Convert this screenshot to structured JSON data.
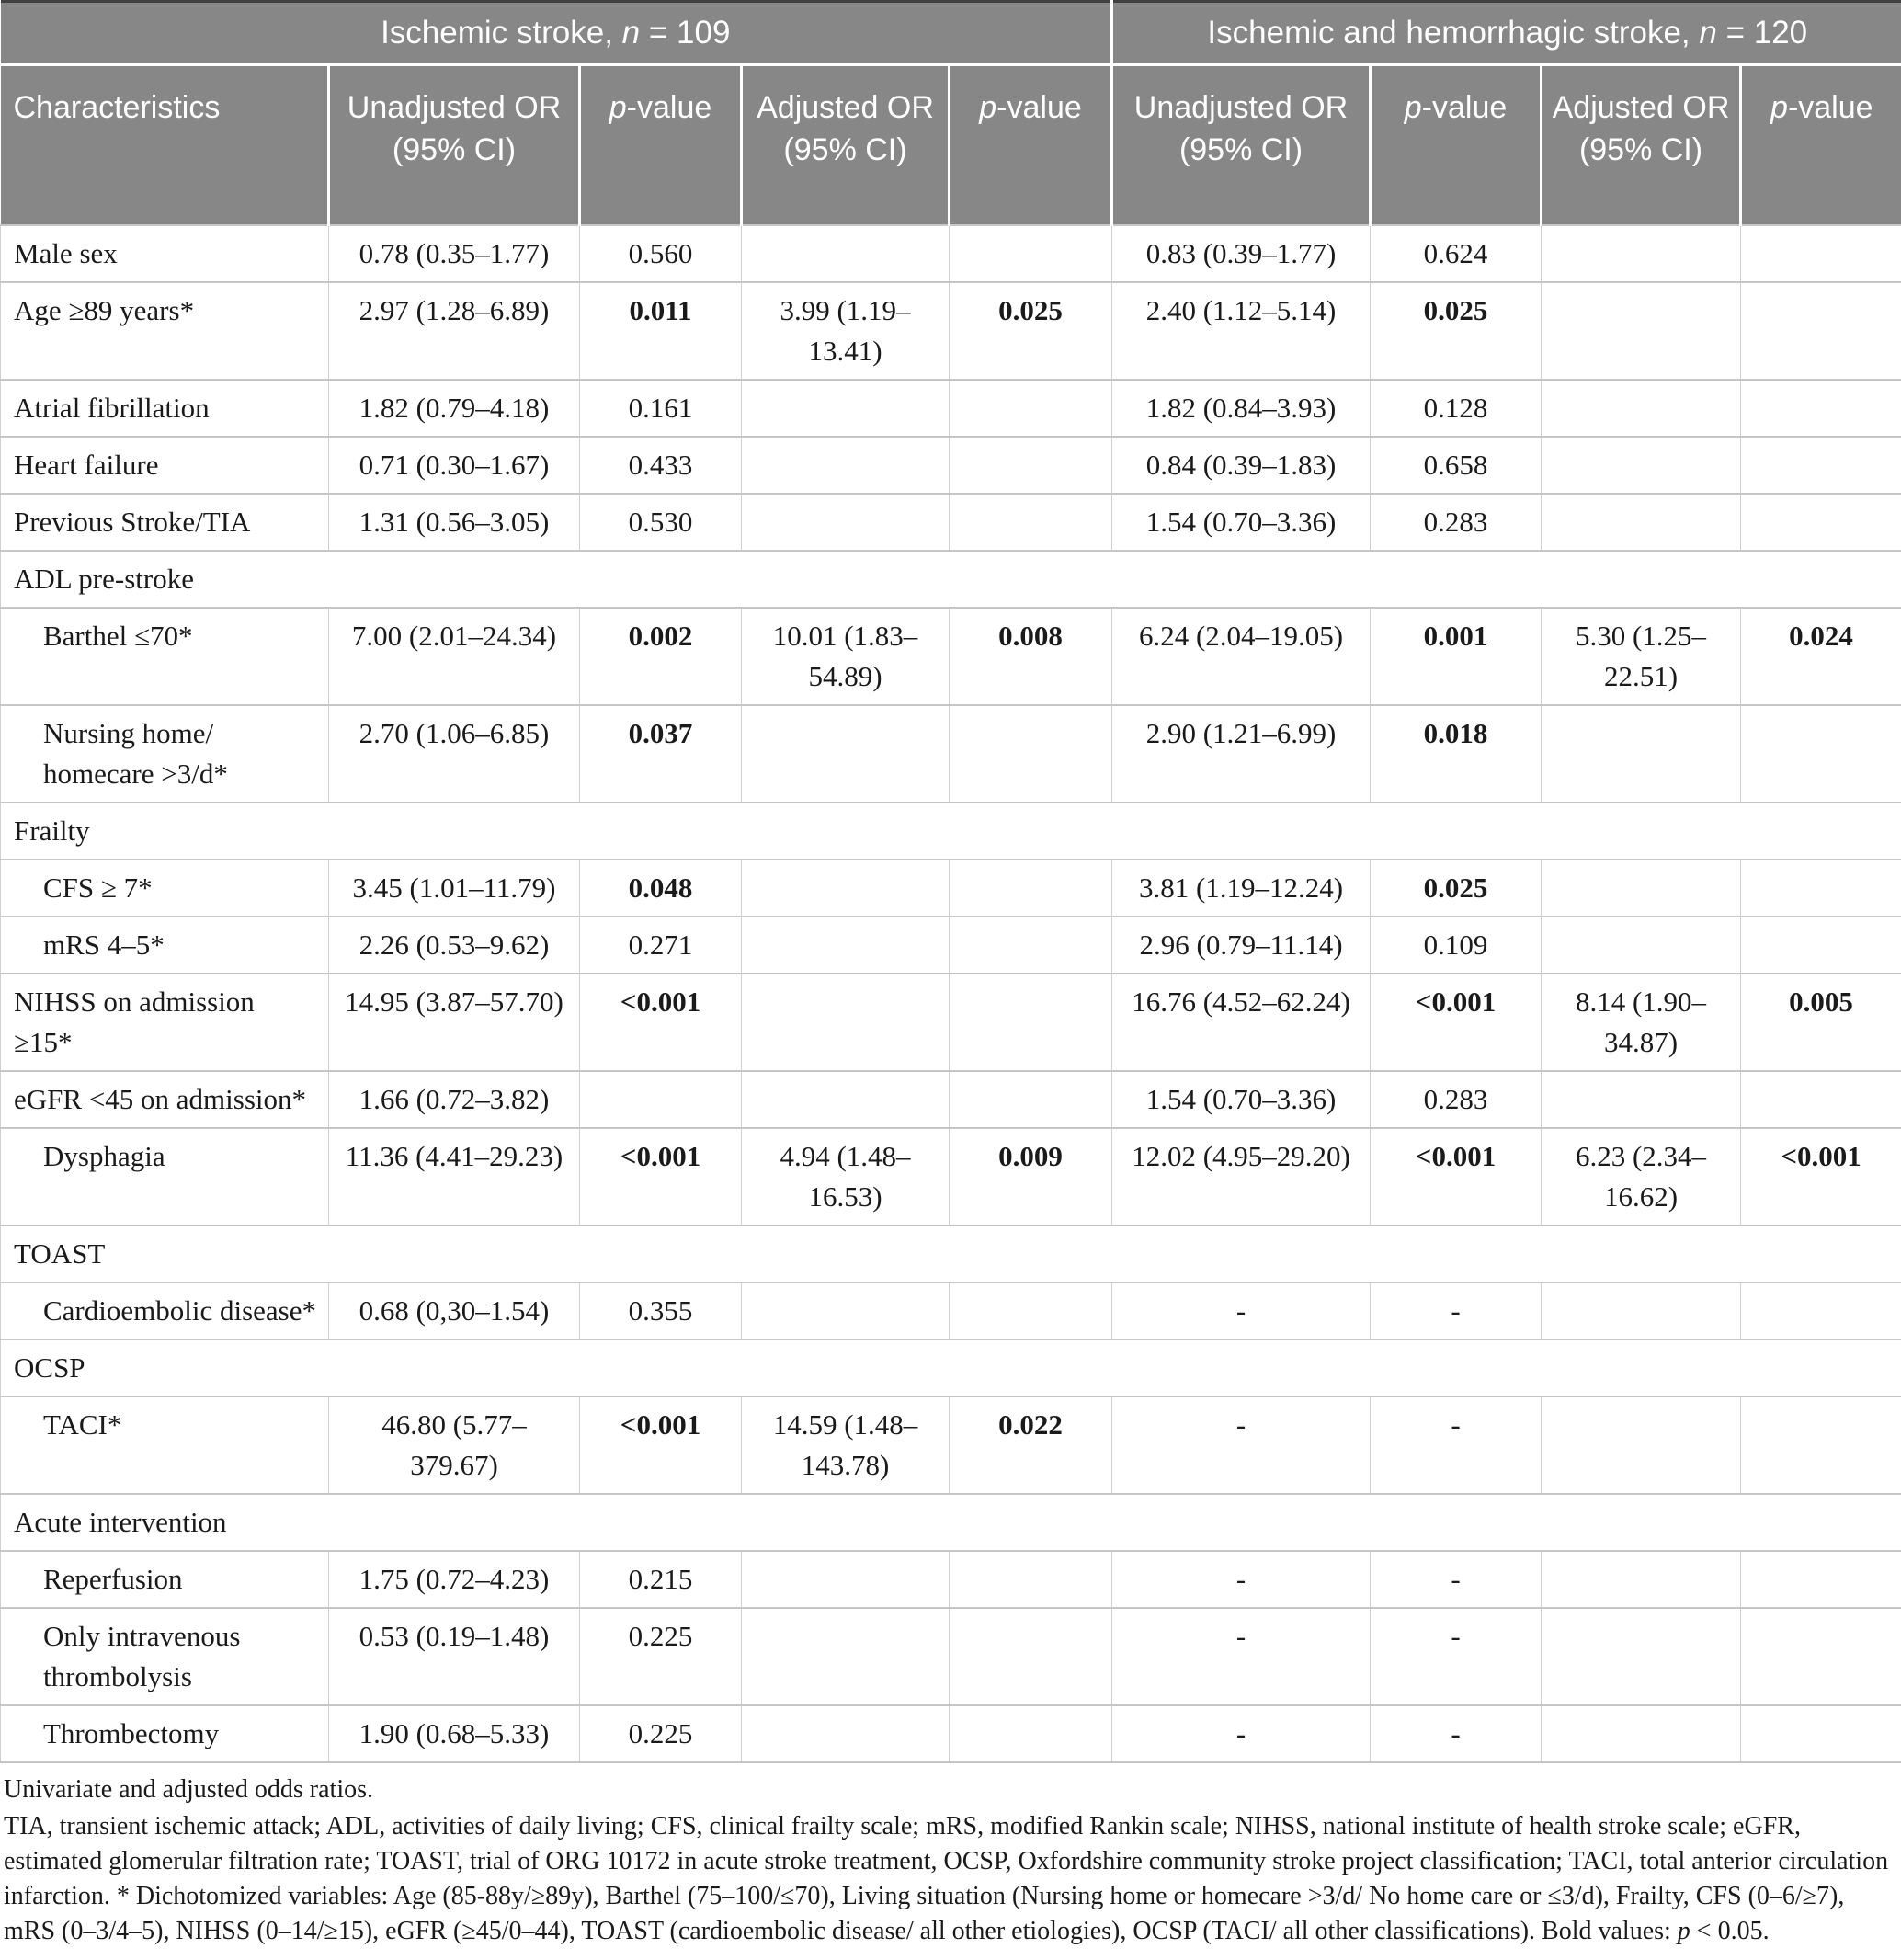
{
  "colors": {
    "header_bg": "#878787",
    "header_text": "#ffffff",
    "grid_line": "#c6c6c6",
    "top_rule": "#404040",
    "body_text": "#1a1a1a"
  },
  "header": {
    "group1": {
      "prefix": "Ischemic stroke, ",
      "italic": "n",
      "suffix": " = 109"
    },
    "group2": {
      "prefix": "Ischemic and hemorrhagic stroke, ",
      "italic": "n",
      "suffix": " = 120"
    },
    "characteristics": "Characteristics",
    "unadjusted": "Unadjusted OR (95% CI)",
    "adjusted": "Adjusted OR (95% CI)",
    "pvalue": {
      "italic": "p",
      "rest": "-value"
    }
  },
  "rows": [
    {
      "type": "data",
      "indent": false,
      "label": "Male sex",
      "cells": [
        {
          "text": "0.78 (0.35–1.77)",
          "bold": false
        },
        {
          "text": "0.560",
          "bold": false
        },
        {
          "text": "",
          "bold": false
        },
        {
          "text": "",
          "bold": false
        },
        {
          "text": "0.83 (0.39–1.77)",
          "bold": false
        },
        {
          "text": "0.624",
          "bold": false
        },
        {
          "text": "",
          "bold": false
        },
        {
          "text": "",
          "bold": false
        }
      ]
    },
    {
      "type": "data",
      "indent": false,
      "label": "Age ≥89 years*",
      "cells": [
        {
          "text": "2.97 (1.28–6.89)",
          "bold": false
        },
        {
          "text": "0.011",
          "bold": true
        },
        {
          "text": "3.99 (1.19–\n13.41)",
          "bold": false
        },
        {
          "text": "0.025",
          "bold": true
        },
        {
          "text": "2.40 (1.12–5.14)",
          "bold": false
        },
        {
          "text": "0.025",
          "bold": true
        },
        {
          "text": "",
          "bold": false
        },
        {
          "text": "",
          "bold": false
        }
      ]
    },
    {
      "type": "data",
      "indent": false,
      "label": "Atrial fibrillation",
      "cells": [
        {
          "text": "1.82 (0.79–4.18)",
          "bold": false
        },
        {
          "text": "0.161",
          "bold": false
        },
        {
          "text": "",
          "bold": false
        },
        {
          "text": "",
          "bold": false
        },
        {
          "text": "1.82 (0.84–3.93)",
          "bold": false
        },
        {
          "text": "0.128",
          "bold": false
        },
        {
          "text": "",
          "bold": false
        },
        {
          "text": "",
          "bold": false
        }
      ]
    },
    {
      "type": "data",
      "indent": false,
      "label": "Heart failure",
      "cells": [
        {
          "text": "0.71 (0.30–1.67)",
          "bold": false
        },
        {
          "text": "0.433",
          "bold": false
        },
        {
          "text": "",
          "bold": false
        },
        {
          "text": "",
          "bold": false
        },
        {
          "text": "0.84 (0.39–1.83)",
          "bold": false
        },
        {
          "text": "0.658",
          "bold": false
        },
        {
          "text": "",
          "bold": false
        },
        {
          "text": "",
          "bold": false
        }
      ]
    },
    {
      "type": "data",
      "indent": false,
      "label": "Previous Stroke/TIA",
      "cells": [
        {
          "text": "1.31 (0.56–3.05)",
          "bold": false
        },
        {
          "text": "0.530",
          "bold": false
        },
        {
          "text": "",
          "bold": false
        },
        {
          "text": "",
          "bold": false
        },
        {
          "text": "1.54 (0.70–3.36)",
          "bold": false
        },
        {
          "text": "0.283",
          "bold": false
        },
        {
          "text": "",
          "bold": false
        },
        {
          "text": "",
          "bold": false
        }
      ]
    },
    {
      "type": "section",
      "label": "ADL pre-stroke"
    },
    {
      "type": "data",
      "indent": true,
      "label": "Barthel ≤70*",
      "cells": [
        {
          "text": "7.00 (2.01–24.34)",
          "bold": false
        },
        {
          "text": "0.002",
          "bold": true
        },
        {
          "text": "10.01 (1.83–\n54.89)",
          "bold": false
        },
        {
          "text": "0.008",
          "bold": true
        },
        {
          "text": "6.24 (2.04–19.05)",
          "bold": false
        },
        {
          "text": "0.001",
          "bold": true
        },
        {
          "text": "5.30 (1.25–\n22.51)",
          "bold": false
        },
        {
          "text": "0.024",
          "bold": true
        }
      ]
    },
    {
      "type": "data",
      "indent": true,
      "label": "Nursing home/\nhomecare >3/d*",
      "cells": [
        {
          "text": "2.70 (1.06–6.85)",
          "bold": false
        },
        {
          "text": "0.037",
          "bold": true
        },
        {
          "text": "",
          "bold": false
        },
        {
          "text": "",
          "bold": false
        },
        {
          "text": "2.90 (1.21–6.99)",
          "bold": false
        },
        {
          "text": "0.018",
          "bold": true
        },
        {
          "text": "",
          "bold": false
        },
        {
          "text": "",
          "bold": false
        }
      ]
    },
    {
      "type": "section",
      "label": "Frailty"
    },
    {
      "type": "data",
      "indent": true,
      "label": "CFS ≥ 7*",
      "cells": [
        {
          "text": "3.45 (1.01–11.79)",
          "bold": false
        },
        {
          "text": "0.048",
          "bold": true
        },
        {
          "text": "",
          "bold": false
        },
        {
          "text": "",
          "bold": false
        },
        {
          "text": "3.81 (1.19–12.24)",
          "bold": false
        },
        {
          "text": "0.025",
          "bold": true
        },
        {
          "text": "",
          "bold": false
        },
        {
          "text": "",
          "bold": false
        }
      ]
    },
    {
      "type": "data",
      "indent": true,
      "label": "mRS 4–5*",
      "cells": [
        {
          "text": "2.26 (0.53–9.62)",
          "bold": false
        },
        {
          "text": "0.271",
          "bold": false
        },
        {
          "text": "",
          "bold": false
        },
        {
          "text": "",
          "bold": false
        },
        {
          "text": "2.96 (0.79–11.14)",
          "bold": false
        },
        {
          "text": "0.109",
          "bold": false
        },
        {
          "text": "",
          "bold": false
        },
        {
          "text": "",
          "bold": false
        }
      ]
    },
    {
      "type": "data",
      "indent": false,
      "label": "NIHSS on admission ≥15*",
      "cells": [
        {
          "text": "14.95 (3.87–57.70)",
          "bold": false
        },
        {
          "text": "<0.001",
          "bold": true
        },
        {
          "text": "",
          "bold": false
        },
        {
          "text": "",
          "bold": false
        },
        {
          "text": "16.76 (4.52–62.24)",
          "bold": false
        },
        {
          "text": "<0.001",
          "bold": true
        },
        {
          "text": "8.14 (1.90–\n34.87)",
          "bold": false
        },
        {
          "text": "0.005",
          "bold": true
        }
      ]
    },
    {
      "type": "data",
      "indent": false,
      "label": "eGFR <45 on admission*",
      "cells": [
        {
          "text": "1.66 (0.72–3.82)",
          "bold": false
        },
        {
          "text": "",
          "bold": false
        },
        {
          "text": "",
          "bold": false
        },
        {
          "text": "",
          "bold": false
        },
        {
          "text": "1.54 (0.70–3.36)",
          "bold": false
        },
        {
          "text": "0.283",
          "bold": false
        },
        {
          "text": "",
          "bold": false
        },
        {
          "text": "",
          "bold": false
        }
      ]
    },
    {
      "type": "data",
      "indent": true,
      "label": "Dysphagia",
      "cells": [
        {
          "text": "11.36 (4.41–29.23)",
          "bold": false
        },
        {
          "text": "<0.001",
          "bold": true
        },
        {
          "text": "4.94 (1.48–\n16.53)",
          "bold": false
        },
        {
          "text": "0.009",
          "bold": true
        },
        {
          "text": "12.02 (4.95–29.20)",
          "bold": false
        },
        {
          "text": "<0.001",
          "bold": true
        },
        {
          "text": "6.23 (2.34–\n16.62)",
          "bold": false
        },
        {
          "text": "<0.001",
          "bold": true
        }
      ]
    },
    {
      "type": "section",
      "label": "TOAST"
    },
    {
      "type": "data",
      "indent": true,
      "label": "Cardioembolic disease*",
      "cells": [
        {
          "text": "0.68 (0,30–1.54)",
          "bold": false
        },
        {
          "text": "0.355",
          "bold": false
        },
        {
          "text": "",
          "bold": false
        },
        {
          "text": "",
          "bold": false
        },
        {
          "text": "-",
          "bold": false
        },
        {
          "text": "-",
          "bold": false
        },
        {
          "text": "",
          "bold": false
        },
        {
          "text": "",
          "bold": false
        }
      ]
    },
    {
      "type": "section",
      "label": "OCSP"
    },
    {
      "type": "data",
      "indent": true,
      "label": "TACI*",
      "cells": [
        {
          "text": "46.80 (5.77–\n379.67)",
          "bold": false
        },
        {
          "text": "<0.001",
          "bold": true
        },
        {
          "text": "14.59 (1.48–\n143.78)",
          "bold": false
        },
        {
          "text": "0.022",
          "bold": true
        },
        {
          "text": "-",
          "bold": false
        },
        {
          "text": "-",
          "bold": false
        },
        {
          "text": "",
          "bold": false
        },
        {
          "text": "",
          "bold": false
        }
      ]
    },
    {
      "type": "section",
      "label": "Acute intervention"
    },
    {
      "type": "data",
      "indent": true,
      "label": "Reperfusion",
      "cells": [
        {
          "text": "1.75 (0.72–4.23)",
          "bold": false
        },
        {
          "text": "0.215",
          "bold": false
        },
        {
          "text": "",
          "bold": false
        },
        {
          "text": "",
          "bold": false
        },
        {
          "text": "-",
          "bold": false
        },
        {
          "text": "-",
          "bold": false
        },
        {
          "text": "",
          "bold": false
        },
        {
          "text": "",
          "bold": false
        }
      ]
    },
    {
      "type": "data",
      "indent": true,
      "label": "Only intravenous\nthrombolysis",
      "cells": [
        {
          "text": "0.53 (0.19–1.48)",
          "bold": false
        },
        {
          "text": "0.225",
          "bold": false
        },
        {
          "text": "",
          "bold": false
        },
        {
          "text": "",
          "bold": false
        },
        {
          "text": "-",
          "bold": false
        },
        {
          "text": "-",
          "bold": false
        },
        {
          "text": "",
          "bold": false
        },
        {
          "text": "",
          "bold": false
        }
      ]
    },
    {
      "type": "data",
      "indent": true,
      "label": "Thrombectomy",
      "cells": [
        {
          "text": "1.90 (0.68–5.33)",
          "bold": false
        },
        {
          "text": "0.225",
          "bold": false
        },
        {
          "text": "",
          "bold": false
        },
        {
          "text": "",
          "bold": false
        },
        {
          "text": "-",
          "bold": false
        },
        {
          "text": "-",
          "bold": false
        },
        {
          "text": "",
          "bold": false
        },
        {
          "text": "",
          "bold": false
        }
      ]
    }
  ],
  "footnotes": {
    "caption": "Univariate and adjusted odds ratios.",
    "body": "TIA, transient ischemic attack; ADL, activities of daily living; CFS, clinical frailty scale; mRS, modified Rankin scale; NIHSS, national institute of health stroke scale; eGFR, estimated glomerular filtration rate; TOAST, trial of ORG 10172 in acute stroke treatment, OCSP, Oxfordshire community stroke project classification; TACI, total anterior circulation infarction. * Dichotomized variables: Age (85-88y/≥89y), Barthel (75–100/≤70), Living situation (Nursing home or homecare >3/d/ No home care or ≤3/d), Frailty, CFS (0–6/≥7), mRS (0–3/4–5), NIHSS (0–14/≥15), eGFR (≥45/0–44), TOAST (cardioembolic disease/ all other etiologies), OCSP (TACI/ all other classifications). Bold values: ",
    "p_italic": "p",
    "body_end": " < 0.05."
  }
}
